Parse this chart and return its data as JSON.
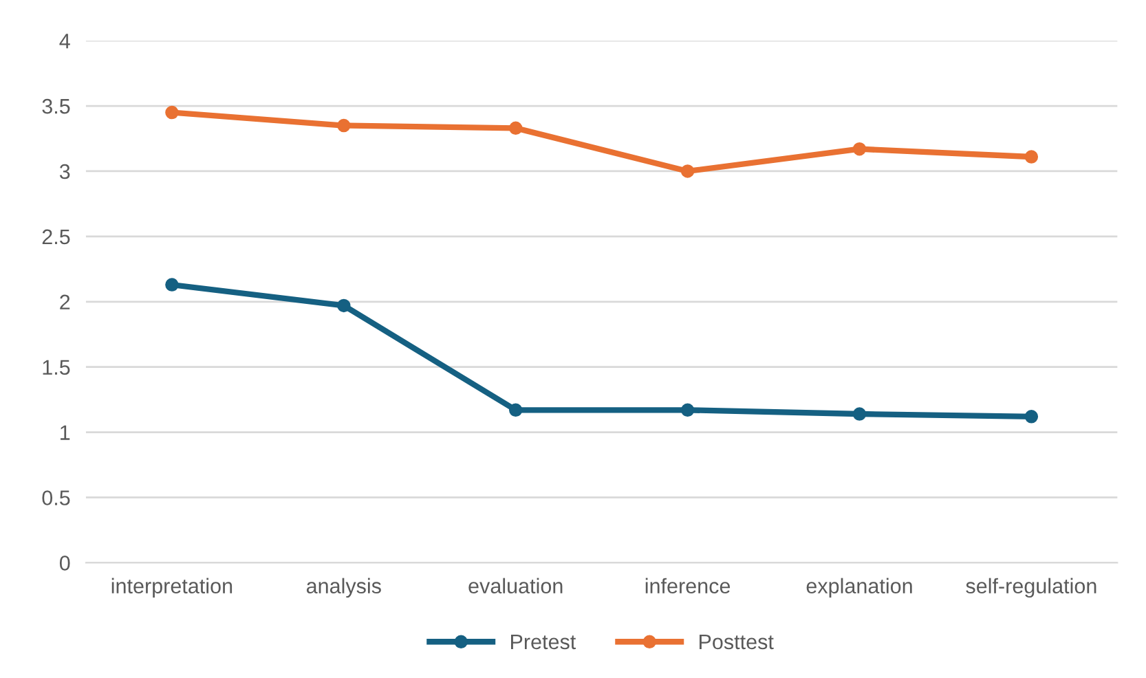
{
  "chart_data": {
    "type": "line",
    "categories": [
      "interpretation",
      "analysis",
      "evaluation",
      "inference",
      "explanation",
      "self-regulation"
    ],
    "series": [
      {
        "name": "Pretest",
        "color": "#156082",
        "values": [
          2.13,
          1.97,
          1.17,
          1.17,
          1.14,
          1.12
        ]
      },
      {
        "name": "Posttest",
        "color": "#e97132",
        "values": [
          3.45,
          3.35,
          3.33,
          3.0,
          3.17,
          3.11
        ]
      }
    ],
    "ylim": [
      0,
      4
    ],
    "yticks": [
      0,
      0.5,
      1,
      1.5,
      2,
      2.5,
      3,
      3.5,
      4
    ],
    "grid": "y",
    "legend": "bottom",
    "marker": "circle",
    "line_style": "solid"
  }
}
